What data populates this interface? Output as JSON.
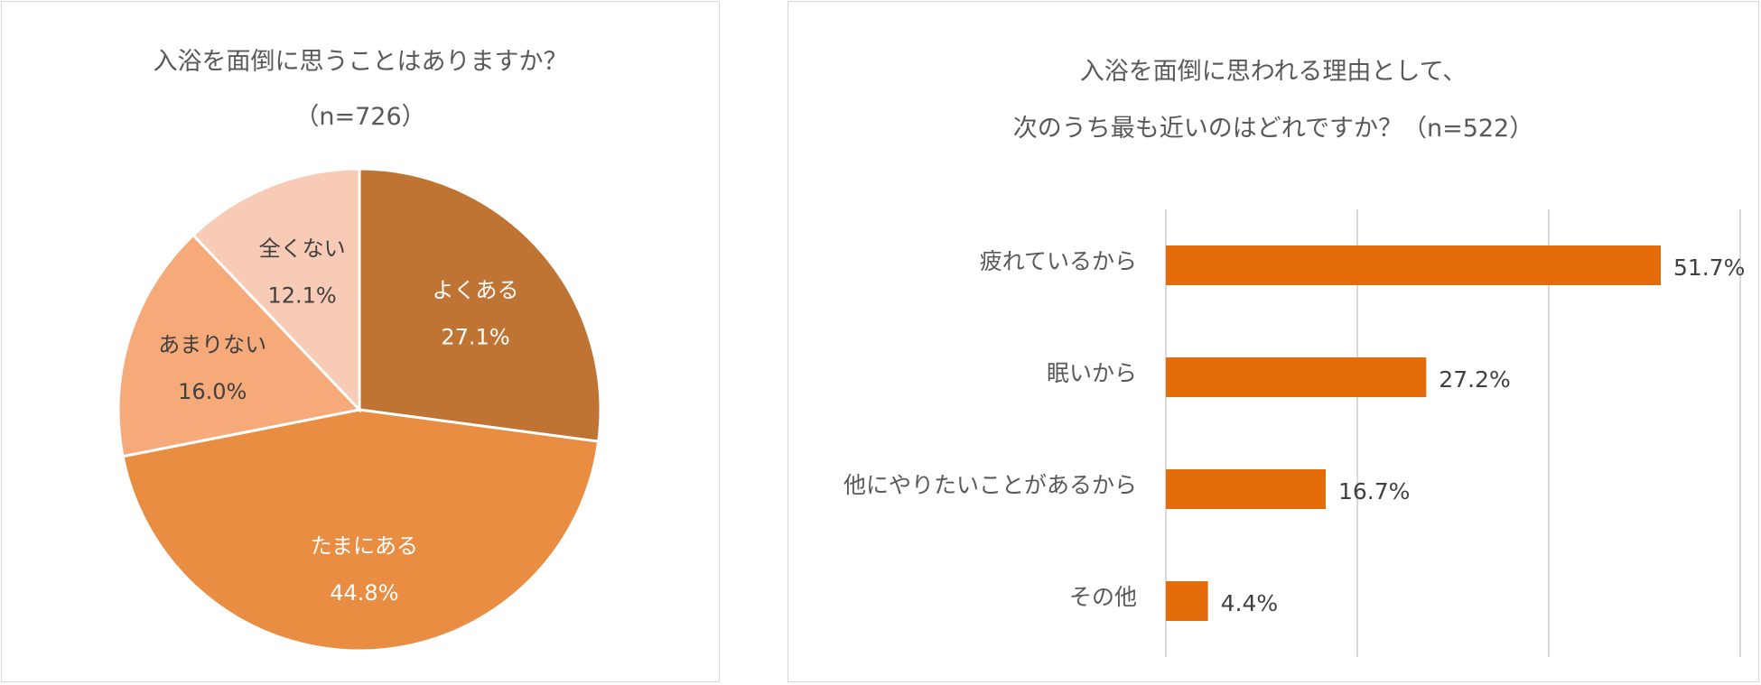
{
  "chart_data": [
    {
      "type": "pie",
      "title": "入浴を面倒に思うことはありますか？",
      "subtitle": "（n=726）",
      "slices": [
        {
          "label": "よくある",
          "value": 27.1,
          "display": "27.1%",
          "color": "#C07433"
        },
        {
          "label": "たまにある",
          "value": 44.8,
          "display": "44.8%",
          "color": "#E88D42"
        },
        {
          "label": "あまりない",
          "value": 16.0,
          "display": "16.0%",
          "color": "#F6AA7A"
        },
        {
          "label": "全くない",
          "value": 12.1,
          "display": "12.1%",
          "color": "#F8CBB6"
        }
      ]
    },
    {
      "type": "bar",
      "orientation": "horizontal",
      "title": "入浴を面倒に思われる理由として、",
      "subtitle": "次のうち最も近いのはどれですか？（n=522）",
      "categories": [
        "疲れているから",
        "眠いから",
        "他にやりたいことがあるから",
        "その他"
      ],
      "values": [
        51.7,
        27.2,
        16.7,
        4.4
      ],
      "value_labels": [
        "51.7%",
        "27.2%",
        "16.7%",
        "4.4%"
      ],
      "xlim": [
        0,
        60
      ],
      "grid": true,
      "color": "#E46C0A"
    }
  ]
}
